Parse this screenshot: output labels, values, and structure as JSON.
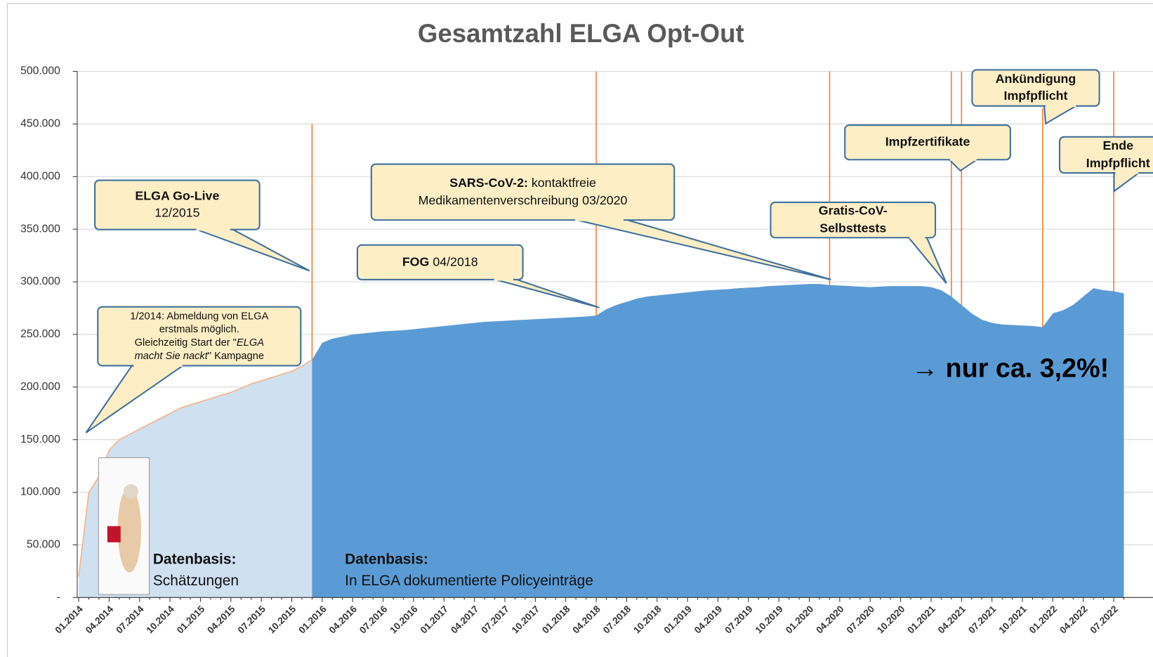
{
  "chart_data": {
    "type": "area",
    "title": "Gesamtzahl ELGA Opt-Out",
    "categories": [
      "01.2014",
      null,
      null,
      "04.2014",
      null,
      null,
      "07.2014",
      null,
      null,
      "10.2014",
      null,
      null,
      "01.2015",
      null,
      null,
      "04.2015",
      null,
      null,
      "07.2015",
      null,
      null,
      "10.2015",
      null,
      null,
      "01.2016",
      null,
      null,
      "04.2016",
      null,
      null,
      "07.2016",
      null,
      null,
      "10.2016",
      null,
      null,
      "01.2017",
      null,
      null,
      "04.2017",
      null,
      null,
      "07.2017",
      null,
      null,
      "10.2017",
      null,
      null,
      "01.2018",
      null,
      null,
      "04.2018",
      null,
      null,
      "07.2018",
      null,
      null,
      "10.2018",
      null,
      null,
      "01.2019",
      null,
      null,
      "04.2019",
      null,
      null,
      "07.2019",
      null,
      null,
      "10.2019",
      null,
      null,
      "01.2020",
      null,
      null,
      "04.2020",
      null,
      null,
      "07.2020",
      null,
      null,
      "10.2020",
      null,
      null,
      "01.2021",
      null,
      null,
      "04.2021",
      null,
      null,
      "07.2021",
      null,
      null,
      "10.2021",
      null,
      null,
      "01.2022",
      null,
      null,
      "04.2022",
      null,
      null,
      "07.2022",
      null
    ],
    "legend_title": "Datenbasis:",
    "series": [
      {
        "name": "Schätzungen",
        "color": "#cfe0f1",
        "line_color": "#f4b183",
        "values": [
          20000,
          100000,
          115000,
          140000,
          150000,
          155000,
          160000,
          165000,
          170000,
          175000,
          180000,
          183000,
          186000,
          189000,
          192000,
          195000,
          199000,
          203000,
          206000,
          209000,
          212000,
          215000,
          220000,
          226000,
          null,
          null,
          null,
          null,
          null,
          null,
          null,
          null,
          null,
          null,
          null,
          null,
          null,
          null,
          null,
          null,
          null,
          null,
          null,
          null,
          null,
          null,
          null,
          null,
          null,
          null,
          null,
          null,
          null,
          null,
          null,
          null,
          null,
          null,
          null,
          null,
          null,
          null,
          null,
          null,
          null,
          null,
          null,
          null,
          null,
          null,
          null,
          null,
          null,
          null,
          null,
          null,
          null,
          null,
          null,
          null,
          null,
          null,
          null,
          null,
          null,
          null,
          null,
          null,
          null,
          null,
          null,
          null,
          null,
          null,
          null,
          null,
          null,
          null,
          null,
          null,
          null,
          null,
          null,
          null
        ]
      },
      {
        "name": "In ELGA dokumentierte Policyeinträge",
        "color": "#5b9bd5",
        "values": [
          null,
          null,
          null,
          null,
          null,
          null,
          null,
          null,
          null,
          null,
          null,
          null,
          null,
          null,
          null,
          null,
          null,
          null,
          null,
          null,
          null,
          null,
          null,
          226000,
          242000,
          246000,
          248000,
          250000,
          251000,
          252000,
          253000,
          253500,
          254000,
          255000,
          256000,
          257000,
          258000,
          259000,
          260000,
          261000,
          262000,
          262500,
          263000,
          263500,
          264000,
          264500,
          265000,
          265500,
          266000,
          266500,
          267000,
          268000,
          274000,
          278000,
          281000,
          284000,
          286000,
          287000,
          288000,
          289000,
          290000,
          291000,
          292000,
          292500,
          293000,
          294000,
          294500,
          295000,
          296000,
          296500,
          297000,
          297500,
          298000,
          298000,
          297000,
          296500,
          296000,
          295500,
          295000,
          295500,
          296000,
          296000,
          296000,
          296000,
          295000,
          292000,
          286000,
          278000,
          270000,
          264000,
          261000,
          259500,
          259000,
          258500,
          258000,
          257000,
          270000,
          273000,
          278000,
          286000,
          294000,
          292000,
          291000,
          289000
        ]
      }
    ],
    "ylim": [
      0,
      500000
    ],
    "yticks": [
      {
        "value": 0,
        "label": "-"
      },
      {
        "value": 50000,
        "label": "50.000"
      },
      {
        "value": 100000,
        "label": "100.000"
      },
      {
        "value": 150000,
        "label": "150.000"
      },
      {
        "value": 200000,
        "label": "200.000"
      },
      {
        "value": 250000,
        "label": "250.000"
      },
      {
        "value": 300000,
        "label": "300.000"
      },
      {
        "value": 350000,
        "label": "350.000"
      },
      {
        "value": 400000,
        "label": "400.000"
      },
      {
        "value": 450000,
        "label": "450.000"
      },
      {
        "value": 500000,
        "label": "500.000"
      }
    ],
    "grid": true,
    "event_color": "#ed7d31",
    "events": [
      {
        "x": "12.2015",
        "top": 450000
      },
      {
        "x": "04.2018",
        "top": 500000
      },
      {
        "x": "03.2020",
        "top": 500000
      },
      {
        "x": "03.2021",
        "top": 500000
      },
      {
        "x": "04.2021",
        "top": 500000
      },
      {
        "x": "12.2021",
        "top": 465000
      },
      {
        "x": "07.2022",
        "top": 500000
      }
    ],
    "annotations": [
      {
        "lines": [
          [
            {
              "text": "1/2014: Abmeldung von ELGA"
            }
          ],
          [
            {
              "text": "erstmals möglich."
            }
          ],
          [
            {
              "text": "Gleichzeitig Start der \""
            },
            {
              "text": "ELGA",
              "style": "italic"
            }
          ],
          [
            {
              "text": "macht Sie nackt",
              "style": "italic"
            },
            {
              "text": "\" Kampagne"
            }
          ]
        ]
      },
      {
        "lines": [
          [
            {
              "text": "ELGA Go-Live",
              "style": "bold"
            }
          ],
          [
            {
              "text": "12/2015"
            }
          ]
        ]
      },
      {
        "lines": [
          [
            {
              "text": "FOG",
              "style": "bold"
            },
            {
              "text": " 04/2018"
            }
          ]
        ]
      },
      {
        "lines": [
          [
            {
              "text": "SARS-CoV-2:",
              "style": "bold"
            },
            {
              "text": " kontaktfreie"
            }
          ],
          [
            {
              "text": "Medikamentenverschreibung 03/2020"
            }
          ]
        ]
      },
      {
        "lines": [
          [
            {
              "text": "Gratis-CoV-",
              "style": "bold"
            }
          ],
          [
            {
              "text": "Selbsttests",
              "style": "bold"
            }
          ]
        ]
      },
      {
        "lines": [
          [
            {
              "text": "Impfzertifikate",
              "style": "bold"
            }
          ]
        ]
      },
      {
        "lines": [
          [
            {
              "text": "Ankündigung",
              "style": "bold"
            }
          ],
          [
            {
              "text": "Impfpflicht",
              "style": "bold"
            }
          ]
        ]
      },
      {
        "lines": [
          [
            {
              "text": "Ende",
              "style": "bold"
            }
          ],
          [
            {
              "text": "Impfpflicht",
              "style": "bold"
            }
          ]
        ]
      }
    ],
    "note": "→ nur ca. 3,2%!"
  }
}
